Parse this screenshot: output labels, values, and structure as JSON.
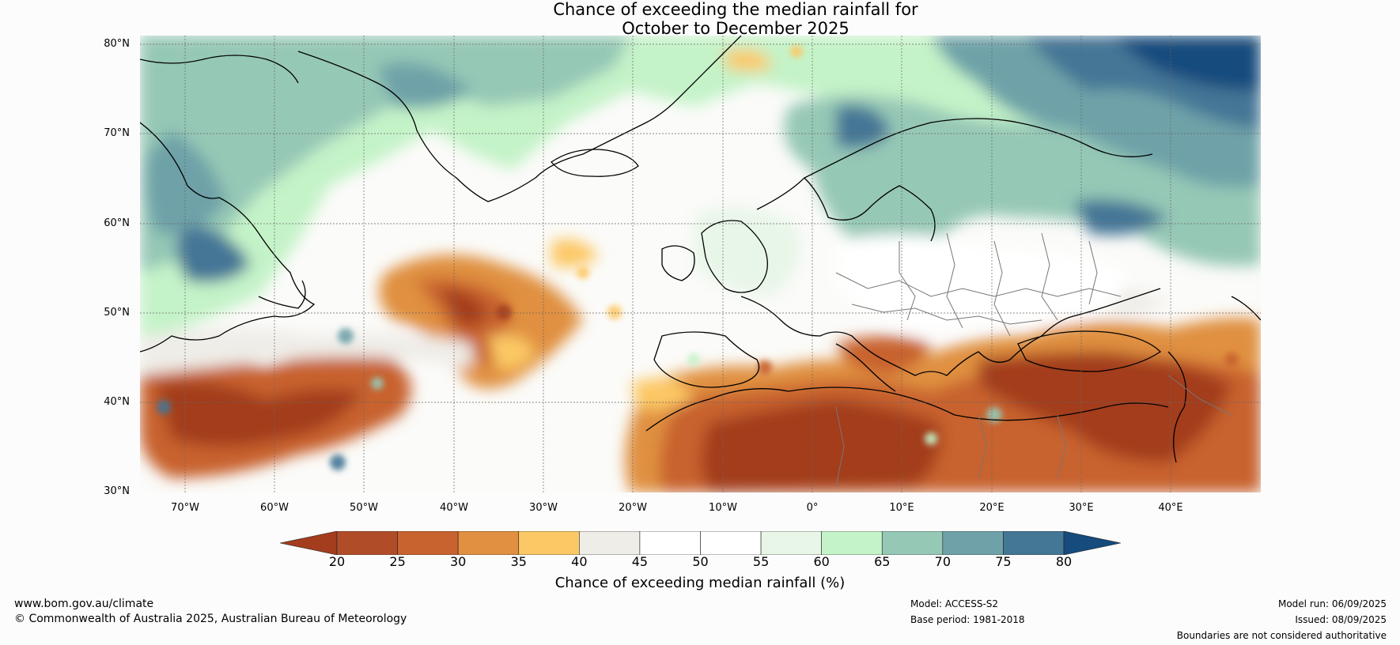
{
  "title": {
    "line1": "Chance of exceeding the median rainfall for",
    "line2": "October to December 2025"
  },
  "map": {
    "latitude_labels": [
      "80°N",
      "70°N",
      "60°N",
      "50°N",
      "40°N",
      "30°N"
    ],
    "longitude_labels": [
      "70°W",
      "60°W",
      "50°W",
      "40°W",
      "30°W",
      "20°W",
      "10°W",
      "0°",
      "10°E",
      "20°E",
      "30°E",
      "40°E"
    ],
    "extent": {
      "lon": [
        -75,
        50
      ],
      "lat": [
        30,
        81
      ]
    }
  },
  "colorbar": {
    "title": "Chance of exceeding median rainfall (%)",
    "ticks": [
      "20",
      "25",
      "30",
      "35",
      "40",
      "45",
      "50",
      "55",
      "60",
      "65",
      "70",
      "75",
      "80"
    ],
    "colors": [
      "#a33d1e",
      "#b04d28",
      "#c8622f",
      "#e09040",
      "#fcc865",
      "#efede8",
      "#ffffff",
      "#ffffff",
      "#e8f6e8",
      "#c4f3c8",
      "#96c8b6",
      "#6ea2a8",
      "#447696",
      "#154b7d"
    ]
  },
  "footer": {
    "url": "www.bom.gov.au/climate",
    "copyright": "© Commonwealth of Australia 2025, Australian Bureau of Meteorology",
    "model": "Model: ACCESS-S2",
    "base_period": "Base period: 1981-2018",
    "model_run": "Model run: 06/09/2025",
    "issued": "Issued: 08/09/2025",
    "disclaimer": "Boundaries are not considered authoritative"
  }
}
